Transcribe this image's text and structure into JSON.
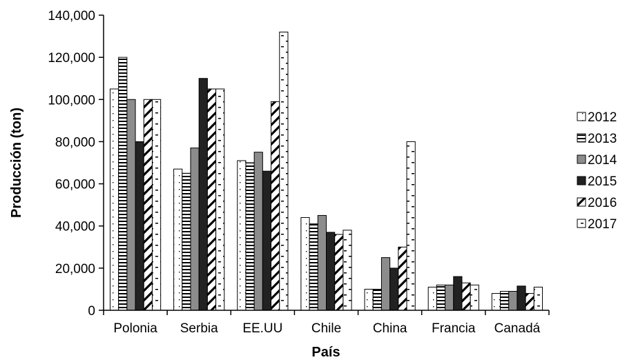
{
  "chart_data": {
    "type": "bar",
    "title": "",
    "xlabel": "País",
    "ylabel": "Producción  (ton)",
    "ylim": [
      0,
      140000
    ],
    "ytick_step": 20000,
    "ytick_labels": [
      "0",
      "20,000",
      "40,000",
      "60,000",
      "80,000",
      "100,000",
      "120,000",
      "140,000"
    ],
    "grid": false,
    "legend_position": "right",
    "categories": [
      "Polonia",
      "Serbia",
      "EE.UU",
      "Chile",
      "China",
      "Francia",
      "Canadá"
    ],
    "series": [
      {
        "name": "2012",
        "pattern": "dots",
        "values": [
          105000,
          67000,
          71000,
          44000,
          10000,
          11000,
          8000
        ]
      },
      {
        "name": "2013",
        "pattern": "hstripes",
        "values": [
          120000,
          65000,
          70000,
          41000,
          10000,
          12000,
          9000
        ]
      },
      {
        "name": "2014",
        "pattern": "gray",
        "color": "#8c8c8c",
        "values": [
          100000,
          77000,
          75000,
          45000,
          25000,
          12000,
          9000
        ]
      },
      {
        "name": "2015",
        "pattern": "black",
        "color": "#222222",
        "values": [
          80000,
          110000,
          66000,
          37000,
          20000,
          16000,
          11500
        ]
      },
      {
        "name": "2016",
        "pattern": "diagonal",
        "values": [
          100000,
          105000,
          99000,
          36000,
          30000,
          13000,
          8000
        ]
      },
      {
        "name": "2017",
        "pattern": "dashes",
        "values": [
          100000,
          105000,
          132000,
          38000,
          80000,
          12000,
          11000
        ]
      }
    ]
  }
}
